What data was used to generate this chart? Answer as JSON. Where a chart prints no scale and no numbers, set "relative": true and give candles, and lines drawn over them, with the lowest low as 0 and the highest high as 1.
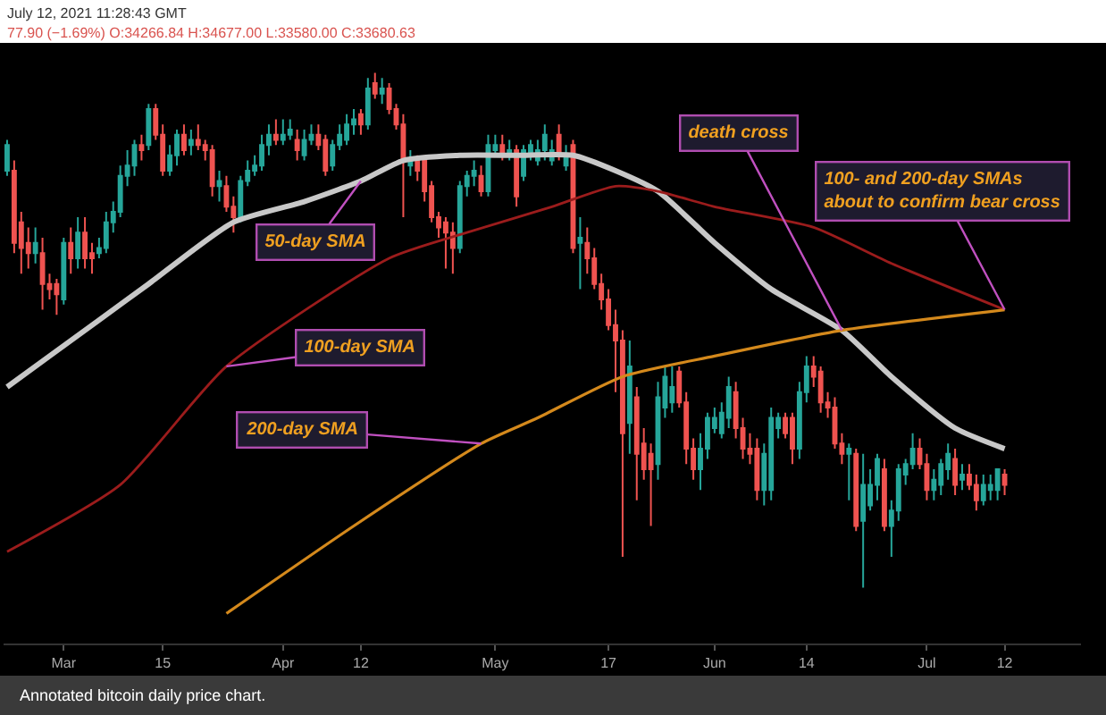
{
  "chart_data": {
    "type": "candlestick",
    "relative": true,
    "title": "July 12, 2021 11:28:43 GMT",
    "subtitle": "77.90 (−1.69%) O:34266.84 H:34677.00 L:33580.00 C:33680.63",
    "xlim": [
      "2021-02-20T12:00",
      "2021-07-22T19:00"
    ],
    "xticks": [
      {
        "value": "2021-03-01",
        "label": "Mar"
      },
      {
        "value": "2021-03-15",
        "label": "15"
      },
      {
        "value": "2021-04-01",
        "label": "Apr"
      },
      {
        "value": "2021-04-12",
        "label": "12"
      },
      {
        "value": "2021-05-01",
        "label": "May"
      },
      {
        "value": "2021-05-17",
        "label": "17"
      },
      {
        "value": "2021-06-01",
        "label": "Jun"
      },
      {
        "value": "2021-06-14",
        "label": "14"
      },
      {
        "value": "2021-07-01",
        "label": "Jul"
      },
      {
        "value": "2021-07-12",
        "label": "12"
      }
    ],
    "series": [
      {
        "colors": [
          "#26a69a",
          "#ef5350",
          "#ef5350",
          "#ef5350",
          "#26a69a",
          "#ef5350",
          "#ef5350",
          "#ef5350",
          "#26a69a",
          "#ef5350",
          "#26a69a",
          "#ef5350",
          "#ef5350",
          "#26a69a",
          "#26a69a",
          "#26a69a",
          "#26a69a",
          "#26a69a",
          "#26a69a",
          "#ef5350",
          "#26a69a",
          "#ef5350",
          "#ef5350",
          "#26a69a",
          "#26a69a",
          "#ef5350",
          "#26a69a",
          "#ef5350",
          "#ef5350",
          "#ef5350",
          "#26a69a",
          "#ef5350",
          "#ef5350",
          "#26a69a",
          "#26a69a",
          "#26a69a",
          "#26a69a",
          "#26a69a",
          "#ef5350",
          "#26a69a",
          "#26a69a",
          "#ef5350",
          "#26a69a",
          "#26a69a",
          "#ef5350",
          "#ef5350",
          "#26a69a",
          "#26a69a",
          "#26a69a",
          "#26a69a",
          "#ef5350",
          "#26a69a",
          "#ef5350",
          "#26a69a",
          "#ef5350",
          "#ef5350",
          "#ef5350",
          "#26a69a",
          "#ef5350",
          "#ef5350",
          "#ef5350",
          "#ef5350",
          "#ef5350",
          "#ef5350",
          "#26a69a",
          "#26a69a",
          "#26a69a",
          "#ef5350",
          "#26a69a",
          "#26a69a",
          "#ef5350",
          "#26a69a",
          "#ef5350",
          "#26a69a",
          "#26a69a",
          "#26a69a",
          "#26a69a",
          "#26a69a",
          "#ef5350",
          "#26a69a",
          "#ef5350",
          "#26a69a",
          "#ef5350",
          "#ef5350",
          "#ef5350",
          "#ef5350",
          "#ef5350",
          "#ef5350",
          "#26a69a",
          "#ef5350",
          "#ef5350",
          "#ef5350",
          "#26a69a",
          "#26a69a",
          "#26a69a",
          "#ef5350",
          "#ef5350",
          "#ef5350",
          "#26a69a",
          "#26a69a",
          "#26a69a",
          "#26a69a",
          "#26a69a",
          "#ef5350",
          "#ef5350",
          "#ef5350",
          "#ef5350",
          "#26a69a",
          "#26a69a",
          "#26a69a",
          "#ef5350",
          "#ef5350",
          "#26a69a",
          "#26a69a",
          "#ef5350",
          "#ef5350",
          "#ef5350",
          "#ef5350",
          "#ef5350",
          "#26a69a",
          "#ef5350",
          "#26a69a",
          "#26a69a",
          "#26a69a",
          "#ef5350",
          "#26a69a",
          "#26a69a",
          "#26a69a",
          "#26a69a",
          "#ef5350",
          "#ef5350",
          "#26a69a",
          "#26a69a",
          "#26a69a",
          "#ef5350",
          "#26a69a",
          "#ef5350",
          "#ef5350",
          "#26a69a",
          "#26a69a",
          "#26a69a",
          "#ef5350"
        ],
        "x": [
          "2021-02-21",
          "2021-02-22",
          "2021-02-23",
          "2021-02-24",
          "2021-02-25",
          "2021-02-26",
          "2021-02-27",
          "2021-02-28",
          "2021-03-01",
          "2021-03-02",
          "2021-03-03",
          "2021-03-04",
          "2021-03-05",
          "2021-03-06",
          "2021-03-07",
          "2021-03-08",
          "2021-03-09",
          "2021-03-10",
          "2021-03-11",
          "2021-03-12",
          "2021-03-13",
          "2021-03-14",
          "2021-03-15",
          "2021-03-16",
          "2021-03-17",
          "2021-03-18",
          "2021-03-19",
          "2021-03-20",
          "2021-03-21",
          "2021-03-22",
          "2021-03-23",
          "2021-03-24",
          "2021-03-25",
          "2021-03-26",
          "2021-03-27",
          "2021-03-28",
          "2021-03-29",
          "2021-03-30",
          "2021-03-31",
          "2021-04-01",
          "2021-04-02",
          "2021-04-03",
          "2021-04-04",
          "2021-04-05",
          "2021-04-06",
          "2021-04-07",
          "2021-04-08",
          "2021-04-09",
          "2021-04-10",
          "2021-04-11",
          "2021-04-12",
          "2021-04-13",
          "2021-04-14",
          "2021-04-15",
          "2021-04-16",
          "2021-04-17",
          "2021-04-18",
          "2021-04-19",
          "2021-04-20",
          "2021-04-21",
          "2021-04-22",
          "2021-04-23",
          "2021-04-24",
          "2021-04-25",
          "2021-04-26",
          "2021-04-27",
          "2021-04-28",
          "2021-04-29",
          "2021-04-30",
          "2021-05-01",
          "2021-05-02",
          "2021-05-03",
          "2021-05-04",
          "2021-05-05",
          "2021-05-06",
          "2021-05-07",
          "2021-05-08",
          "2021-05-09",
          "2021-05-10",
          "2021-05-11",
          "2021-05-12",
          "2021-05-13",
          "2021-05-14",
          "2021-05-15",
          "2021-05-16",
          "2021-05-17",
          "2021-05-18",
          "2021-05-19",
          "2021-05-20",
          "2021-05-21",
          "2021-05-22",
          "2021-05-23",
          "2021-05-24",
          "2021-05-25",
          "2021-05-26",
          "2021-05-27",
          "2021-05-28",
          "2021-05-29",
          "2021-05-30",
          "2021-05-31",
          "2021-06-01",
          "2021-06-02",
          "2021-06-03",
          "2021-06-04",
          "2021-06-05",
          "2021-06-06",
          "2021-06-07",
          "2021-06-08",
          "2021-06-09",
          "2021-06-10",
          "2021-06-11",
          "2021-06-12",
          "2021-06-13",
          "2021-06-14",
          "2021-06-15",
          "2021-06-16",
          "2021-06-17",
          "2021-06-18",
          "2021-06-19",
          "2021-06-20",
          "2021-06-21",
          "2021-06-22",
          "2021-06-23",
          "2021-06-24",
          "2021-06-25",
          "2021-06-26",
          "2021-06-27",
          "2021-06-28",
          "2021-06-29",
          "2021-06-30",
          "2021-07-01",
          "2021-07-02",
          "2021-07-03",
          "2021-07-04",
          "2021-07-05",
          "2021-07-06",
          "2021-07-07",
          "2021-07-08",
          "2021-07-09",
          "2021-07-10",
          "2021-07-11",
          "2021-07-12"
        ],
        "ohlc": [
          [
            0.81,
            0.87,
            0.8,
            0.86
          ],
          [
            0.81,
            0.83,
            0.65,
            0.67
          ],
          [
            0.71,
            0.73,
            0.61,
            0.66
          ],
          [
            0.67,
            0.7,
            0.62,
            0.65
          ],
          [
            0.65,
            0.7,
            0.63,
            0.67
          ],
          [
            0.65,
            0.68,
            0.54,
            0.59
          ],
          [
            0.59,
            0.61,
            0.56,
            0.58
          ],
          [
            0.59,
            0.6,
            0.53,
            0.57
          ],
          [
            0.56,
            0.68,
            0.55,
            0.67
          ],
          [
            0.67,
            0.7,
            0.61,
            0.64
          ],
          [
            0.64,
            0.72,
            0.62,
            0.69
          ],
          [
            0.69,
            0.72,
            0.62,
            0.64
          ],
          [
            0.65,
            0.67,
            0.61,
            0.64
          ],
          [
            0.65,
            0.68,
            0.64,
            0.66
          ],
          [
            0.66,
            0.73,
            0.65,
            0.71
          ],
          [
            0.71,
            0.75,
            0.69,
            0.73
          ],
          [
            0.73,
            0.82,
            0.72,
            0.8
          ],
          [
            0.8,
            0.85,
            0.78,
            0.82
          ],
          [
            0.82,
            0.87,
            0.8,
            0.86
          ],
          [
            0.86,
            0.88,
            0.83,
            0.85
          ],
          [
            0.86,
            0.94,
            0.85,
            0.93
          ],
          [
            0.93,
            0.94,
            0.87,
            0.88
          ],
          [
            0.88,
            0.9,
            0.8,
            0.81
          ],
          [
            0.81,
            0.86,
            0.8,
            0.84
          ],
          [
            0.84,
            0.89,
            0.82,
            0.88
          ],
          [
            0.88,
            0.9,
            0.84,
            0.85
          ],
          [
            0.86,
            0.89,
            0.84,
            0.87
          ],
          [
            0.87,
            0.9,
            0.85,
            0.86
          ],
          [
            0.86,
            0.87,
            0.83,
            0.85
          ],
          [
            0.85,
            0.86,
            0.76,
            0.78
          ],
          [
            0.78,
            0.81,
            0.75,
            0.79
          ],
          [
            0.78,
            0.8,
            0.73,
            0.74
          ],
          [
            0.74,
            0.76,
            0.69,
            0.72
          ],
          [
            0.72,
            0.8,
            0.71,
            0.79
          ],
          [
            0.79,
            0.83,
            0.78,
            0.81
          ],
          [
            0.81,
            0.84,
            0.8,
            0.82
          ],
          [
            0.82,
            0.88,
            0.81,
            0.86
          ],
          [
            0.86,
            0.9,
            0.84,
            0.88
          ],
          [
            0.88,
            0.91,
            0.86,
            0.87
          ],
          [
            0.87,
            0.91,
            0.86,
            0.88
          ],
          [
            0.88,
            0.91,
            0.87,
            0.89
          ],
          [
            0.87,
            0.89,
            0.83,
            0.85
          ],
          [
            0.84,
            0.89,
            0.83,
            0.87
          ],
          [
            0.87,
            0.9,
            0.86,
            0.88
          ],
          [
            0.88,
            0.9,
            0.85,
            0.86
          ],
          [
            0.87,
            0.88,
            0.8,
            0.81
          ],
          [
            0.82,
            0.87,
            0.81,
            0.86
          ],
          [
            0.86,
            0.9,
            0.85,
            0.88
          ],
          [
            0.87,
            0.92,
            0.86,
            0.9
          ],
          [
            0.9,
            0.93,
            0.88,
            0.91
          ],
          [
            0.92,
            0.93,
            0.88,
            0.9
          ],
          [
            0.9,
            0.99,
            0.89,
            0.97
          ],
          [
            0.98,
            1.0,
            0.95,
            0.96
          ],
          [
            0.96,
            0.99,
            0.94,
            0.97
          ],
          [
            0.97,
            0.98,
            0.92,
            0.93
          ],
          [
            0.93,
            0.94,
            0.89,
            0.9
          ],
          [
            0.9,
            0.92,
            0.72,
            0.83
          ],
          [
            0.82,
            0.85,
            0.8,
            0.83
          ],
          [
            0.83,
            0.84,
            0.79,
            0.81
          ],
          [
            0.83,
            0.84,
            0.75,
            0.77
          ],
          [
            0.78,
            0.79,
            0.71,
            0.72
          ],
          [
            0.72,
            0.73,
            0.68,
            0.7
          ],
          [
            0.71,
            0.72,
            0.62,
            0.69
          ],
          [
            0.69,
            0.71,
            0.61,
            0.66
          ],
          [
            0.66,
            0.79,
            0.65,
            0.78
          ],
          [
            0.78,
            0.81,
            0.76,
            0.8
          ],
          [
            0.8,
            0.83,
            0.78,
            0.81
          ],
          [
            0.8,
            0.82,
            0.76,
            0.77
          ],
          [
            0.77,
            0.88,
            0.76,
            0.86
          ],
          [
            0.85,
            0.88,
            0.84,
            0.86
          ],
          [
            0.86,
            0.88,
            0.83,
            0.84
          ],
          [
            0.84,
            0.87,
            0.83,
            0.85
          ],
          [
            0.85,
            0.86,
            0.74,
            0.76
          ],
          [
            0.8,
            0.86,
            0.79,
            0.85
          ],
          [
            0.84,
            0.87,
            0.83,
            0.86
          ],
          [
            0.83,
            0.87,
            0.82,
            0.85
          ],
          [
            0.85,
            0.9,
            0.83,
            0.88
          ],
          [
            0.83,
            0.87,
            0.82,
            0.85
          ],
          [
            0.88,
            0.9,
            0.83,
            0.84
          ],
          [
            0.82,
            0.86,
            0.81,
            0.84
          ],
          [
            0.86,
            0.87,
            0.65,
            0.66
          ],
          [
            0.67,
            0.72,
            0.58,
            0.68
          ],
          [
            0.67,
            0.7,
            0.61,
            0.64
          ],
          [
            0.64,
            0.66,
            0.58,
            0.59
          ],
          [
            0.59,
            0.61,
            0.54,
            0.56
          ],
          [
            0.56,
            0.58,
            0.5,
            0.51
          ],
          [
            0.51,
            0.54,
            0.38,
            0.48
          ],
          [
            0.48,
            0.5,
            0.06,
            0.3
          ],
          [
            0.32,
            0.48,
            0.26,
            0.43
          ],
          [
            0.37,
            0.39,
            0.17,
            0.26
          ],
          [
            0.28,
            0.31,
            0.21,
            0.23
          ],
          [
            0.26,
            0.28,
            0.12,
            0.23
          ],
          [
            0.24,
            0.4,
            0.21,
            0.37
          ],
          [
            0.35,
            0.43,
            0.33,
            0.41
          ],
          [
            0.36,
            0.43,
            0.34,
            0.39
          ],
          [
            0.42,
            0.43,
            0.35,
            0.36
          ],
          [
            0.36,
            0.38,
            0.24,
            0.27
          ],
          [
            0.27,
            0.29,
            0.21,
            0.23
          ],
          [
            0.23,
            0.3,
            0.19,
            0.27
          ],
          [
            0.27,
            0.34,
            0.25,
            0.33
          ],
          [
            0.31,
            0.35,
            0.3,
            0.33
          ],
          [
            0.3,
            0.36,
            0.29,
            0.34
          ],
          [
            0.33,
            0.41,
            0.31,
            0.39
          ],
          [
            0.38,
            0.4,
            0.29,
            0.31
          ],
          [
            0.31,
            0.33,
            0.25,
            0.27
          ],
          [
            0.27,
            0.3,
            0.24,
            0.26
          ],
          [
            0.27,
            0.29,
            0.17,
            0.19
          ],
          [
            0.19,
            0.28,
            0.16,
            0.26
          ],
          [
            0.19,
            0.35,
            0.17,
            0.33
          ],
          [
            0.31,
            0.34,
            0.29,
            0.33
          ],
          [
            0.33,
            0.34,
            0.29,
            0.3
          ],
          [
            0.33,
            0.34,
            0.24,
            0.27
          ],
          [
            0.27,
            0.4,
            0.25,
            0.38
          ],
          [
            0.38,
            0.45,
            0.36,
            0.43
          ],
          [
            0.43,
            0.45,
            0.39,
            0.41
          ],
          [
            0.42,
            0.43,
            0.34,
            0.36
          ],
          [
            0.36,
            0.38,
            0.33,
            0.35
          ],
          [
            0.35,
            0.37,
            0.27,
            0.28
          ],
          [
            0.28,
            0.3,
            0.24,
            0.26
          ],
          [
            0.26,
            0.28,
            0.17,
            0.27
          ],
          [
            0.26,
            0.27,
            0.11,
            0.12
          ],
          [
            0.13,
            0.26,
            0.0,
            0.2
          ],
          [
            0.16,
            0.23,
            0.15,
            0.2
          ],
          [
            0.2,
            0.26,
            0.17,
            0.25
          ],
          [
            0.23,
            0.25,
            0.11,
            0.12
          ],
          [
            0.12,
            0.17,
            0.06,
            0.15
          ],
          [
            0.15,
            0.24,
            0.13,
            0.23
          ],
          [
            0.22,
            0.25,
            0.2,
            0.24
          ],
          [
            0.24,
            0.3,
            0.23,
            0.27
          ],
          [
            0.27,
            0.29,
            0.23,
            0.24
          ],
          [
            0.24,
            0.26,
            0.17,
            0.19
          ],
          [
            0.19,
            0.23,
            0.17,
            0.21
          ],
          [
            0.2,
            0.25,
            0.18,
            0.24
          ],
          [
            0.23,
            0.28,
            0.21,
            0.26
          ],
          [
            0.25,
            0.27,
            0.18,
            0.2
          ],
          [
            0.21,
            0.24,
            0.19,
            0.22
          ],
          [
            0.22,
            0.24,
            0.19,
            0.2
          ],
          [
            0.2,
            0.22,
            0.15,
            0.17
          ],
          [
            0.17,
            0.22,
            0.16,
            0.2
          ],
          [
            0.19,
            0.22,
            0.17,
            0.2
          ],
          [
            0.19,
            0.23,
            0.17,
            0.23
          ],
          [
            0.22,
            0.23,
            0.18,
            0.2
          ]
        ]
      },
      {
        "type": "line",
        "color": "#c8c8c8",
        "x": [
          "2021-02-21",
          "2021-02-27",
          "2021-03-06",
          "2021-03-13",
          "2021-03-25",
          "2021-04-04",
          "2021-04-12",
          "2021-04-18",
          "2021-04-26",
          "2021-05-04",
          "2021-05-12",
          "2021-05-18",
          "2021-05-24",
          "2021-06-01",
          "2021-06-09",
          "2021-06-19",
          "2021-06-26",
          "2021-07-05",
          "2021-07-12"
        ],
        "values": [
          0.39,
          0.45,
          0.52,
          0.59,
          0.71,
          0.75,
          0.79,
          0.83,
          0.84,
          0.84,
          0.84,
          0.81,
          0.77,
          0.67,
          0.58,
          0.5,
          0.41,
          0.31,
          0.27
        ]
      },
      {
        "type": "line",
        "color": "#9b1c1c",
        "x": [
          "2021-02-21",
          "2021-03-09",
          "2021-03-24",
          "2021-04-16",
          "2021-04-27",
          "2021-05-09",
          "2021-05-18",
          "2021-05-24",
          "2021-06-01",
          "2021-06-15",
          "2021-06-26",
          "2021-07-12"
        ],
        "values": [
          0.07,
          0.2,
          0.43,
          0.64,
          0.69,
          0.74,
          0.78,
          0.77,
          0.74,
          0.7,
          0.63,
          0.54
        ]
      },
      {
        "type": "line",
        "color": "#d4891c",
        "x": [
          "2021-03-24",
          "2021-04-11",
          "2021-04-29",
          "2021-05-07",
          "2021-05-19",
          "2021-06-01",
          "2021-06-19",
          "2021-07-12"
        ],
        "values": [
          -0.05,
          0.12,
          0.28,
          0.33,
          0.41,
          0.45,
          0.5,
          0.54
        ]
      }
    ],
    "annotations": [
      {
        "text": "50-day SMA",
        "x": "2021-04-12",
        "y": 0.79
      },
      {
        "text": "100-day SMA",
        "x": "2021-03-24",
        "y": 0.43
      },
      {
        "text": "200-day SMA",
        "x": "2021-04-29",
        "y": 0.28
      },
      {
        "text": "death cross",
        "x": "2021-06-19",
        "y": 0.5
      },
      {
        "text": "100- and 200-day SMAs about to confirm bear cross",
        "x": "2021-07-12",
        "y": 0.54
      },
      "Annotated bitcoin daily price chart."
    ]
  }
}
